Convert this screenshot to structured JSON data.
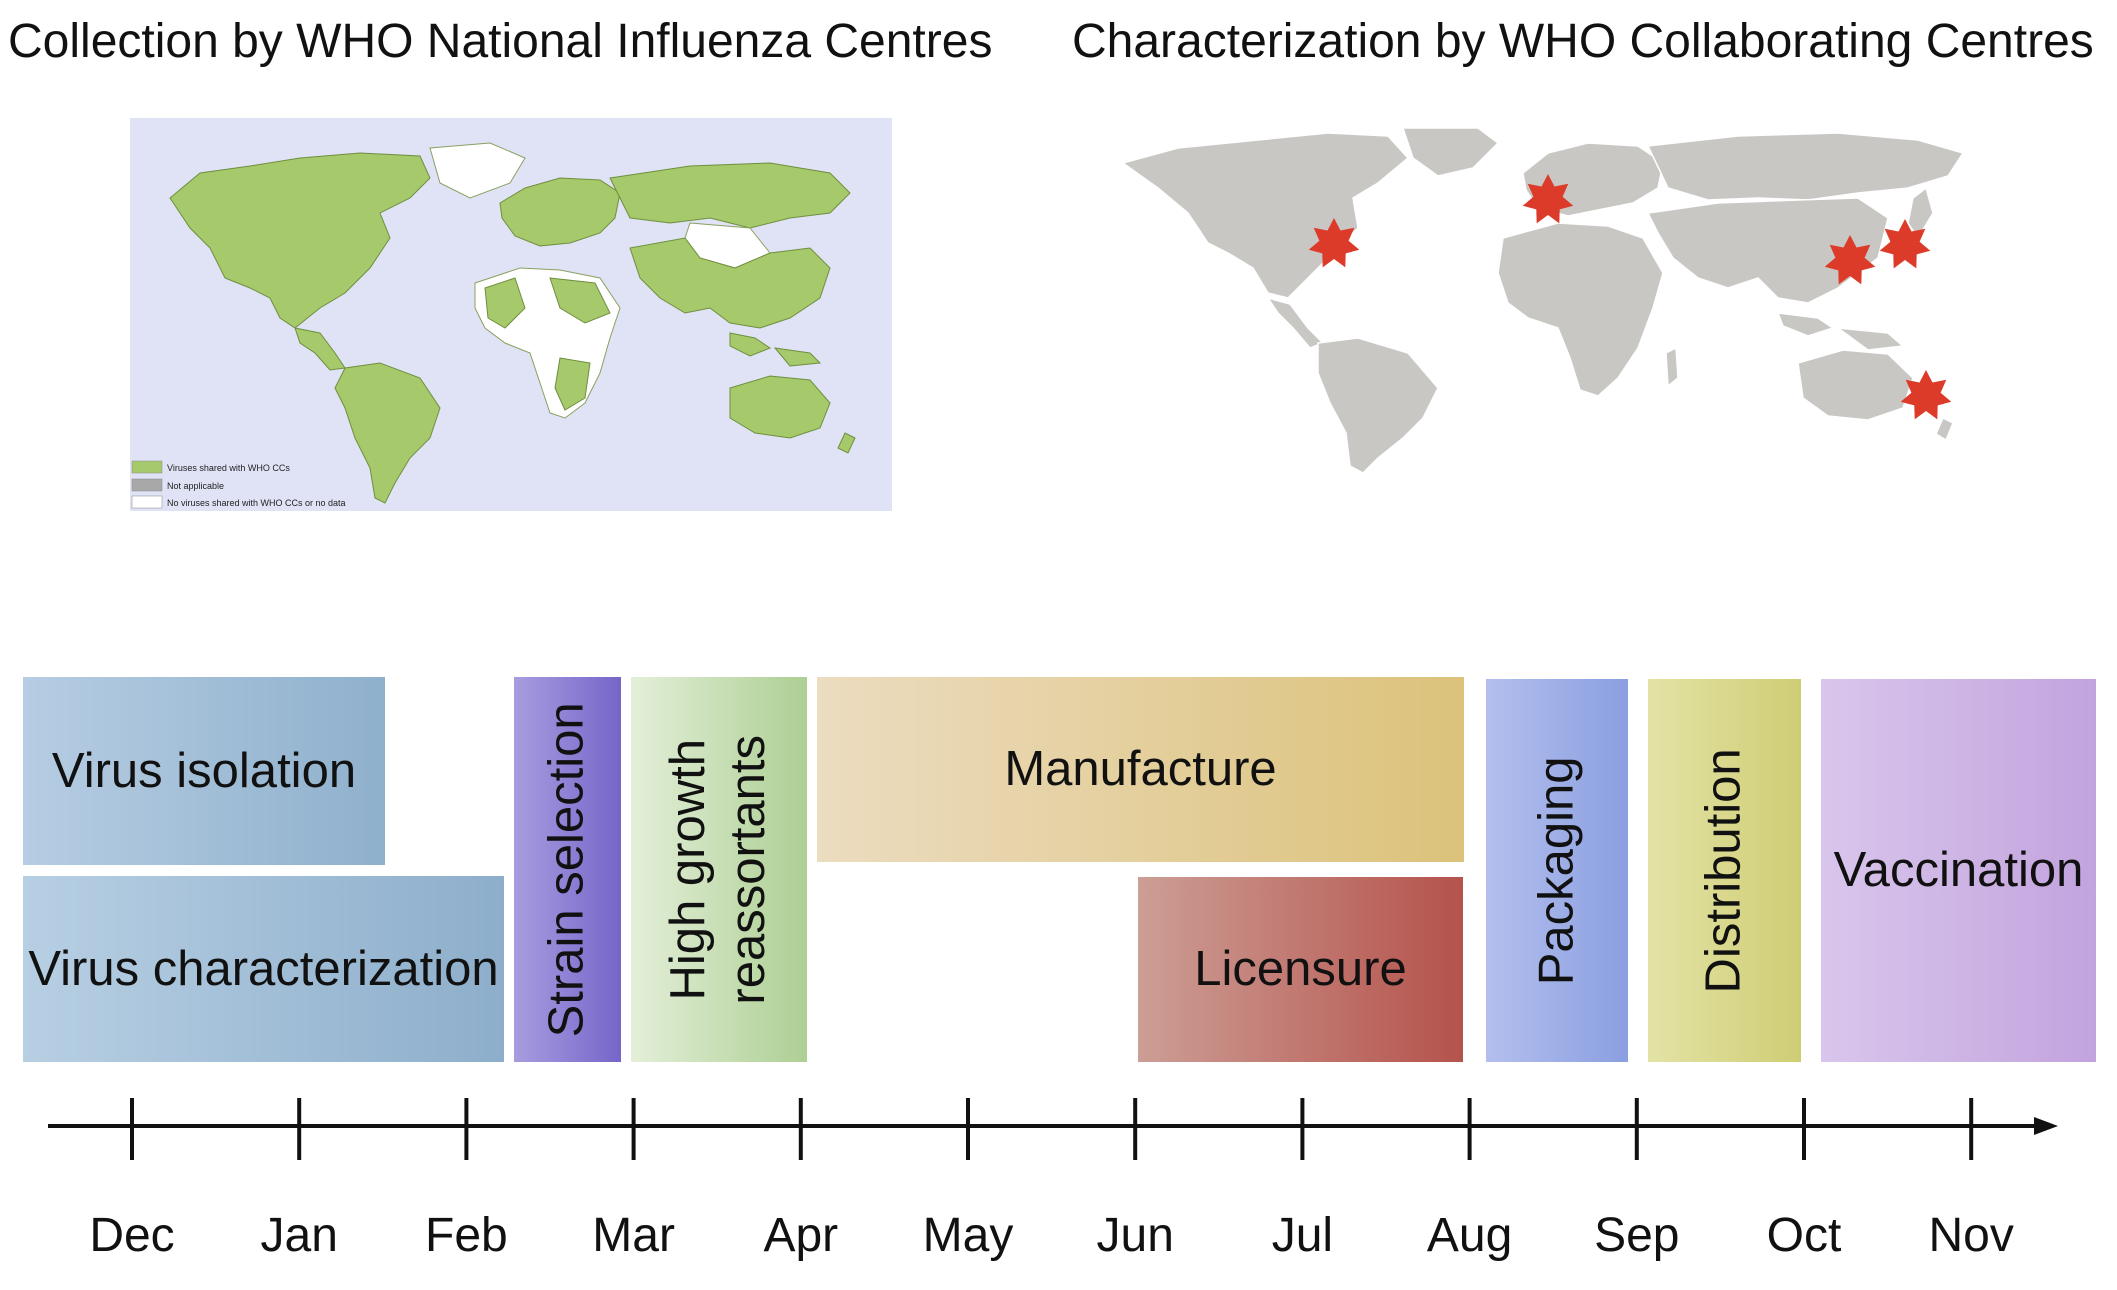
{
  "titles": {
    "left": "Collection by WHO National Influenza Centres",
    "right": "Characterization by WHO Collaborating Centres"
  },
  "left_map": {
    "legend": [
      {
        "label": "Viruses shared with WHO CCs",
        "color": "#a6c96b"
      },
      {
        "label": "Not applicable",
        "color": "#a8a8a8"
      },
      {
        "label": "No viruses shared with WHO CCs or no data",
        "color": "#ffffff"
      }
    ],
    "ocean_color": "#dfe3f5"
  },
  "right_map": {
    "land_color": "#c9c7c4",
    "marker_color": "#dd3b2a",
    "marker_icon": "star-icon"
  },
  "phases": {
    "virus_isolation": "Virus isolation",
    "virus_characterization": "Virus characterization",
    "strain_selection": "Strain selection",
    "high_growth_line1": "High growth",
    "high_growth_line2": "reassortants",
    "manufacture": "Manufacture",
    "licensure": "Licensure",
    "packaging": "Packaging",
    "distribution": "Distribution",
    "vaccination": "Vaccination"
  },
  "timeline": {
    "months": [
      "Dec",
      "Jan",
      "Feb",
      "Mar",
      "Apr",
      "May",
      "Jun",
      "Jul",
      "Aug",
      "Sep",
      "Oct",
      "Nov"
    ]
  },
  "colors": {
    "isolation": [
      "#b6cde3",
      "#8fb0cc"
    ],
    "characterization": [
      "#b7cfe3",
      "#8daecb"
    ],
    "strain": [
      "#a89de0",
      "#7565c9"
    ],
    "highgrowth": [
      "#e4efd9",
      "#adcf93"
    ],
    "manufacture": [
      "#ecdcc0",
      "#dcc27a"
    ],
    "licensure": [
      "#cc9e95",
      "#b5524c"
    ],
    "packaging": [
      "#b4bfee",
      "#8a9fe0"
    ],
    "distribution": [
      "#e3e3a6",
      "#cfcd74"
    ],
    "vaccination": [
      "#d9c6ec",
      "#c2a3de"
    ]
  }
}
